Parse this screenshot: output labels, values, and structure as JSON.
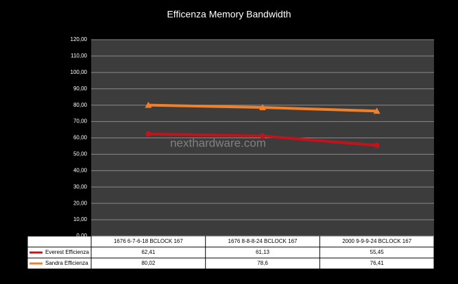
{
  "chart_data": {
    "type": "line",
    "title": "Efficenza Memory Bandwidth",
    "watermark": "nexthardware.com",
    "categories": [
      "1676 6-7-6-18 BCLOCK 167",
      "1676 8-8-8-24 BCLOCK 167",
      "2000 9-9-9-24 BCLOCK 167"
    ],
    "series": [
      {
        "name": "Everest Efficienza",
        "color": "#c0141c",
        "marker": "circle",
        "values": [
          62.41,
          61.13,
          55.45
        ],
        "value_labels": [
          "62,41",
          "61,13",
          "55,45"
        ]
      },
      {
        "name": "Sandra Efficienza",
        "color": "#f0802a",
        "marker": "triangle",
        "values": [
          80.02,
          78.6,
          76.41
        ],
        "value_labels": [
          "80,02",
          "78,6",
          "76,41"
        ]
      }
    ],
    "ylim": [
      0,
      120
    ],
    "yticks": [
      {
        "value": 0,
        "label": "0,00"
      },
      {
        "value": 10,
        "label": "10,00"
      },
      {
        "value": 20,
        "label": "20,00"
      },
      {
        "value": 30,
        "label": "30,00"
      },
      {
        "value": 40,
        "label": "40,00"
      },
      {
        "value": 50,
        "label": "50,00"
      },
      {
        "value": 60,
        "label": "60,00"
      },
      {
        "value": 70,
        "label": "70,00"
      },
      {
        "value": 80,
        "label": "80,00"
      },
      {
        "value": 90,
        "label": "90,00"
      },
      {
        "value": 100,
        "label": "100,00"
      },
      {
        "value": 110,
        "label": "110,00"
      },
      {
        "value": 120,
        "label": "120,00"
      }
    ],
    "grid": true
  }
}
